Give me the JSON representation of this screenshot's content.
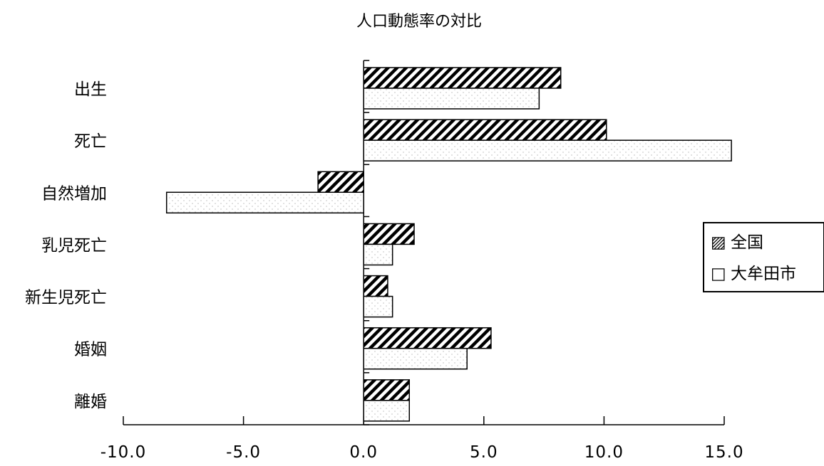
{
  "chart_data": {
    "type": "bar",
    "orientation": "horizontal",
    "title": "人口動態率の対比",
    "categories": [
      "出生",
      "死亡",
      "自然増加",
      "乳児死亡",
      "新生児死亡",
      "婚姻",
      "離婚"
    ],
    "series": [
      {
        "name": "全国",
        "pattern": "diagonal-hatch",
        "values": [
          8.2,
          10.1,
          -1.9,
          2.1,
          1.0,
          5.3,
          1.9
        ]
      },
      {
        "name": "大牟田市",
        "pattern": "light-dots",
        "values": [
          7.3,
          15.3,
          -8.2,
          1.2,
          1.2,
          4.3,
          1.9
        ]
      }
    ],
    "xlim": [
      -10,
      15
    ],
    "xticks": [
      -10,
      -5,
      0,
      5,
      10,
      15
    ],
    "xtick_labels": [
      "-10.0",
      "-5.0",
      "0.0",
      "5.0",
      "10.0",
      "15.0"
    ],
    "xlabel": "",
    "ylabel": "",
    "grid": false,
    "legend": {
      "position": "right",
      "entries": [
        {
          "symbol": "▨",
          "label": "全国"
        },
        {
          "symbol": "□",
          "label": "大牟田市"
        }
      ]
    }
  }
}
